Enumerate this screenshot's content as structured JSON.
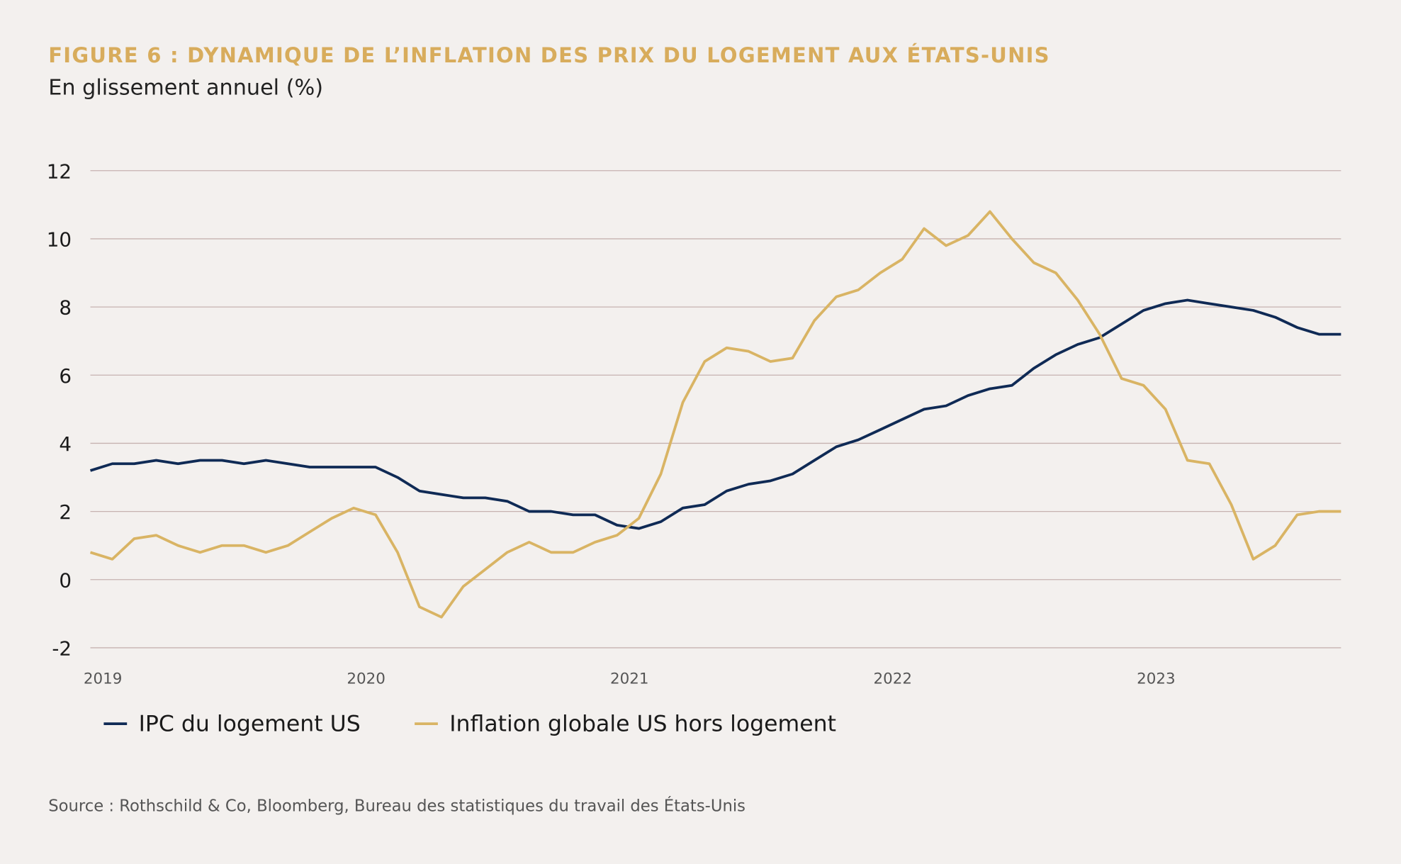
{
  "chart_data": {
    "type": "line",
    "title": "FIGURE 6 : DYNAMIQUE DE L’INFLATION DES PRIX DU LOGEMENT AUX ÉTATS-UNIS",
    "subtitle": "En glissement annuel (%)",
    "source": "Source : Rothschild & Co, Bloomberg, Bureau des statistiques du travail des États-Unis",
    "categories": [
      "2019",
      null,
      null,
      null,
      null,
      null,
      null,
      null,
      null,
      null,
      null,
      null,
      "2020",
      null,
      null,
      null,
      null,
      null,
      null,
      null,
      null,
      null,
      null,
      null,
      "2021",
      null,
      null,
      null,
      null,
      null,
      null,
      null,
      null,
      null,
      null,
      null,
      "2022",
      null,
      null,
      null,
      null,
      null,
      null,
      null,
      null,
      null,
      null,
      null,
      "2023",
      null,
      null,
      null,
      null,
      null,
      null,
      null,
      null,
      null
    ],
    "series": [
      {
        "name": "IPC du logement US",
        "color": "#0f2a55",
        "values": [
          3.2,
          3.4,
          3.4,
          3.5,
          3.4,
          3.5,
          3.5,
          3.4,
          3.5,
          3.4,
          3.3,
          3.3,
          3.3,
          3.3,
          3.0,
          2.6,
          2.5,
          2.4,
          2.4,
          2.3,
          2.0,
          2.0,
          1.9,
          1.9,
          1.6,
          1.5,
          1.7,
          2.1,
          2.2,
          2.6,
          2.8,
          2.9,
          3.1,
          3.5,
          3.9,
          4.1,
          4.4,
          4.7,
          5.0,
          5.1,
          5.4,
          5.6,
          5.7,
          6.2,
          6.6,
          6.9,
          7.1,
          7.5,
          7.9,
          8.1,
          8.2,
          8.1,
          8.0,
          7.9,
          7.7,
          7.4,
          7.2,
          7.2
        ]
      },
      {
        "name": "Inflation globale US hors logement",
        "color": "#d9b464",
        "values": [
          0.8,
          0.6,
          1.2,
          1.3,
          1.0,
          0.8,
          1.0,
          1.0,
          0.8,
          1.0,
          1.4,
          1.8,
          2.1,
          1.9,
          0.8,
          -0.8,
          -1.1,
          -0.2,
          0.3,
          0.8,
          1.1,
          0.8,
          0.8,
          1.1,
          1.3,
          1.8,
          3.1,
          5.2,
          6.4,
          6.8,
          6.7,
          6.4,
          6.5,
          7.6,
          8.3,
          8.5,
          9.0,
          9.4,
          10.3,
          9.8,
          10.1,
          10.8,
          10.0,
          9.3,
          9.0,
          8.2,
          7.2,
          5.9,
          5.7,
          5.0,
          3.5,
          3.4,
          2.2,
          0.6,
          1.0,
          1.9,
          2.0,
          2.0
        ]
      }
    ],
    "ylim": [
      -2,
      12
    ],
    "yticks": [
      -2,
      0,
      2,
      4,
      6,
      8,
      10,
      12
    ],
    "grid": true
  }
}
